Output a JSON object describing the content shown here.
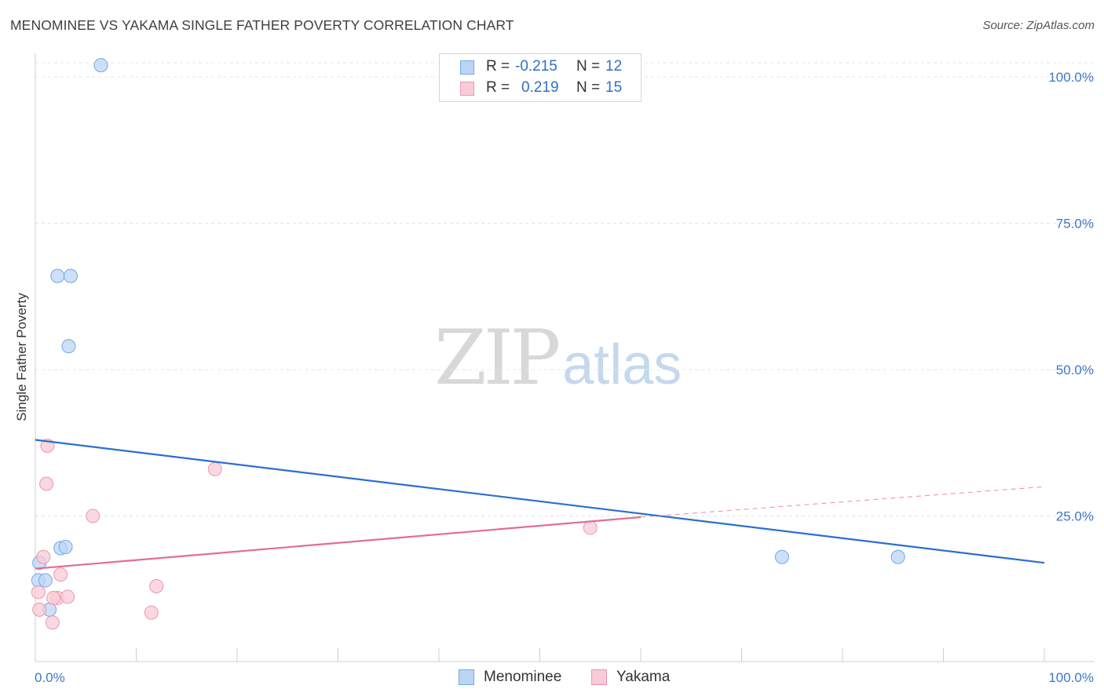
{
  "chart_data": {
    "type": "scatter",
    "title": "MENOMINEE VS YAKAMA SINGLE FATHER POVERTY CORRELATION CHART",
    "source": "Source: ZipAtlas.com",
    "xlabel": "",
    "ylabel": "Single Father Poverty",
    "xlim": [
      0,
      100
    ],
    "ylim": [
      0,
      100
    ],
    "x_tick_labels": [
      "0.0%",
      "100.0%"
    ],
    "y_ticks": [
      25,
      50,
      75,
      100
    ],
    "y_tick_labels": [
      "25.0%",
      "50.0%",
      "75.0%",
      "100.0%"
    ],
    "grid": true,
    "watermark": {
      "zip": "ZIP",
      "atlas": "atlas"
    },
    "legend": {
      "rows": [
        {
          "r_label": "R =",
          "r_value": "-0.215",
          "n_label": "N =",
          "n_value": "12"
        },
        {
          "r_label": "R =",
          "r_value": "0.219",
          "n_label": "N =",
          "n_value": "15"
        }
      ]
    },
    "series": [
      {
        "name": "Menominee",
        "color": "#6fa8e8",
        "fill": "#bcd5f5",
        "line_color": "#2a6fd0",
        "points": [
          [
            6.5,
            102
          ],
          [
            2.2,
            66
          ],
          [
            3.5,
            66
          ],
          [
            3.3,
            54
          ],
          [
            2.5,
            19.5
          ],
          [
            3.0,
            19.7
          ],
          [
            0.4,
            17
          ],
          [
            0.3,
            14
          ],
          [
            1.0,
            14
          ],
          [
            1.4,
            9
          ],
          [
            74.0,
            18
          ],
          [
            85.5,
            18
          ]
        ],
        "trend": {
          "x0": 0,
          "y0": 38,
          "x1": 100,
          "y1": 17
        }
      },
      {
        "name": "Yakama",
        "color": "#ee96ad",
        "fill": "#f8cbd7",
        "line_color": "#e46d93",
        "points": [
          [
            1.2,
            37
          ],
          [
            1.1,
            30.5
          ],
          [
            17.8,
            33
          ],
          [
            5.7,
            25
          ],
          [
            55.0,
            23
          ],
          [
            0.8,
            18
          ],
          [
            2.5,
            15
          ],
          [
            0.3,
            12
          ],
          [
            2.2,
            11
          ],
          [
            3.2,
            11.2
          ],
          [
            12.0,
            13
          ],
          [
            0.4,
            9
          ],
          [
            11.5,
            8.5
          ],
          [
            1.7,
            6.8
          ],
          [
            1.8,
            11
          ]
        ],
        "trend": {
          "x0": 0,
          "y0": 16,
          "x1": 60,
          "y1": 24.8,
          "dashed_to_x": 100,
          "dashed_to_y": 30
        }
      }
    ]
  }
}
